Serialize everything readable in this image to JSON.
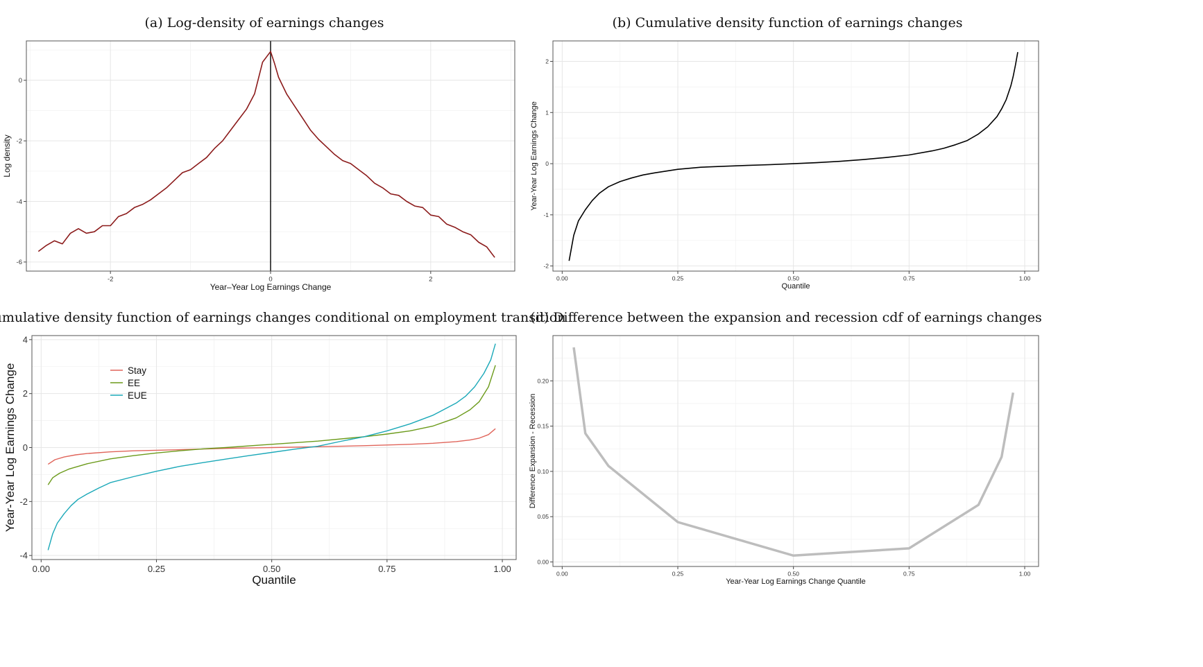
{
  "chart_data": [
    {
      "id": "a",
      "type": "line",
      "title": "(a) Log-density of earnings changes",
      "xlabel": "Year–Year Log Earnings Change",
      "ylabel": "Log density",
      "xlim": [
        -3.05,
        3.05
      ],
      "ylim": [
        -6.3,
        1.3
      ],
      "xticks": [
        -2,
        0,
        2
      ],
      "xticklabels": [
        "-2",
        "0",
        "2"
      ],
      "yticks": [
        0,
        -2,
        -4,
        -6
      ],
      "yticklabels": [
        "0",
        "-2",
        "-4",
        "-6"
      ],
      "grid": true,
      "vline_x": 0,
      "series": [
        {
          "color": "#8b1a1a",
          "x": [
            -2.9,
            -2.8,
            -2.7,
            -2.6,
            -2.5,
            -2.4,
            -2.3,
            -2.2,
            -2.1,
            -2.0,
            -1.9,
            -1.8,
            -1.7,
            -1.6,
            -1.5,
            -1.4,
            -1.3,
            -1.2,
            -1.1,
            -1.0,
            -0.9,
            -0.8,
            -0.7,
            -0.6,
            -0.5,
            -0.4,
            -0.3,
            -0.2,
            -0.1,
            0.0,
            0.05,
            0.1,
            0.2,
            0.3,
            0.4,
            0.5,
            0.6,
            0.7,
            0.8,
            0.9,
            1.0,
            1.1,
            1.2,
            1.3,
            1.4,
            1.5,
            1.6,
            1.7,
            1.8,
            1.9,
            2.0,
            2.1,
            2.2,
            2.3,
            2.4,
            2.5,
            2.6,
            2.7,
            2.8
          ],
          "y": [
            -5.65,
            -5.45,
            -5.3,
            -5.4,
            -5.05,
            -4.9,
            -5.05,
            -5.0,
            -4.8,
            -4.8,
            -4.5,
            -4.4,
            -4.2,
            -4.1,
            -3.95,
            -3.75,
            -3.55,
            -3.3,
            -3.05,
            -2.95,
            -2.75,
            -2.55,
            -2.25,
            -2.0,
            -1.65,
            -1.3,
            -0.95,
            -0.45,
            0.6,
            0.95,
            0.55,
            0.1,
            -0.45,
            -0.85,
            -1.25,
            -1.65,
            -1.95,
            -2.2,
            -2.45,
            -2.65,
            -2.75,
            -2.95,
            -3.15,
            -3.4,
            -3.55,
            -3.75,
            -3.8,
            -4.0,
            -4.15,
            -4.2,
            -4.45,
            -4.5,
            -4.75,
            -4.85,
            -5.0,
            -5.1,
            -5.35,
            -5.5,
            -5.85
          ]
        }
      ]
    },
    {
      "id": "b",
      "type": "line",
      "title": "(b) Cumulative density function of earnings changes",
      "xlabel": "Quantile",
      "ylabel": "Year-Year Log Earnings Change",
      "xlim": [
        -0.02,
        1.03
      ],
      "ylim": [
        -2.1,
        2.4
      ],
      "xticks": [
        0,
        0.25,
        0.5,
        0.75,
        1
      ],
      "xticklabels": [
        "0.00",
        "0.25",
        "0.50",
        "0.75",
        "1.00"
      ],
      "yticks": [
        2,
        1,
        0,
        -1,
        -2
      ],
      "yticklabels": [
        "2",
        "1",
        "0",
        "-1",
        "-2"
      ],
      "grid": true,
      "series": [
        {
          "color": "#000000",
          "x": [
            0.015,
            0.025,
            0.035,
            0.05,
            0.065,
            0.08,
            0.1,
            0.125,
            0.15,
            0.175,
            0.2,
            0.25,
            0.3,
            0.35,
            0.4,
            0.45,
            0.5,
            0.55,
            0.6,
            0.65,
            0.7,
            0.75,
            0.8,
            0.825,
            0.85,
            0.875,
            0.9,
            0.92,
            0.94,
            0.95,
            0.96,
            0.97,
            0.975,
            0.98,
            0.985
          ],
          "y": [
            -1.9,
            -1.4,
            -1.12,
            -0.9,
            -0.72,
            -0.58,
            -0.45,
            -0.35,
            -0.28,
            -0.22,
            -0.18,
            -0.11,
            -0.07,
            -0.05,
            -0.035,
            -0.02,
            0.0,
            0.02,
            0.045,
            0.08,
            0.12,
            0.17,
            0.25,
            0.3,
            0.37,
            0.45,
            0.58,
            0.72,
            0.92,
            1.07,
            1.25,
            1.52,
            1.7,
            1.93,
            2.18
          ]
        }
      ]
    },
    {
      "id": "c",
      "type": "line",
      "title": "(c) Cumulative density function of earnings changes conditional on employment transition",
      "xlabel": "Quantile",
      "ylabel": "Year-Year Log Earnings Change",
      "xlim": [
        -0.02,
        1.03
      ],
      "ylim": [
        -4.15,
        4.15
      ],
      "xticks": [
        0,
        0.25,
        0.5,
        0.75,
        1
      ],
      "xticklabels": [
        "0.00",
        "0.25",
        "0.50",
        "0.75",
        "1.00"
      ],
      "yticks": [
        4,
        2,
        0,
        -2,
        -4
      ],
      "yticklabels": [
        "4",
        "2",
        "0",
        "-2",
        "-4"
      ],
      "grid": true,
      "legend_position": "top-left",
      "series": [
        {
          "name": "Stay",
          "color": "#e0645a",
          "x": [
            0.015,
            0.03,
            0.05,
            0.075,
            0.1,
            0.15,
            0.2,
            0.25,
            0.3,
            0.4,
            0.5,
            0.6,
            0.7,
            0.8,
            0.85,
            0.9,
            0.93,
            0.95,
            0.97,
            0.985
          ],
          "y": [
            -0.62,
            -0.45,
            -0.35,
            -0.27,
            -0.22,
            -0.16,
            -0.12,
            -0.1,
            -0.08,
            -0.03,
            0.0,
            0.03,
            0.07,
            0.12,
            0.16,
            0.22,
            0.28,
            0.35,
            0.48,
            0.7
          ]
        },
        {
          "name": "EE",
          "color": "#6b9a1a",
          "x": [
            0.015,
            0.025,
            0.04,
            0.06,
            0.08,
            0.1,
            0.15,
            0.2,
            0.25,
            0.3,
            0.35,
            0.4,
            0.5,
            0.6,
            0.7,
            0.75,
            0.8,
            0.85,
            0.9,
            0.93,
            0.95,
            0.97,
            0.985
          ],
          "y": [
            -1.38,
            -1.12,
            -0.95,
            -0.8,
            -0.7,
            -0.6,
            -0.42,
            -0.3,
            -0.2,
            -0.12,
            -0.05,
            0.0,
            0.12,
            0.24,
            0.4,
            0.5,
            0.62,
            0.8,
            1.1,
            1.4,
            1.7,
            2.25,
            3.05
          ]
        },
        {
          "name": "EUE",
          "color": "#1aa8b8",
          "x": [
            0.015,
            0.025,
            0.035,
            0.05,
            0.065,
            0.08,
            0.1,
            0.125,
            0.15,
            0.2,
            0.25,
            0.3,
            0.35,
            0.4,
            0.45,
            0.5,
            0.55,
            0.6,
            0.65,
            0.7,
            0.75,
            0.8,
            0.85,
            0.9,
            0.92,
            0.94,
            0.96,
            0.975,
            0.985
          ],
          "y": [
            -3.8,
            -3.2,
            -2.8,
            -2.45,
            -2.15,
            -1.92,
            -1.72,
            -1.5,
            -1.3,
            -1.08,
            -0.88,
            -0.7,
            -0.56,
            -0.43,
            -0.3,
            -0.18,
            -0.06,
            0.05,
            0.23,
            0.4,
            0.62,
            0.88,
            1.2,
            1.65,
            1.9,
            2.25,
            2.75,
            3.25,
            3.85
          ]
        }
      ]
    },
    {
      "id": "d",
      "type": "line",
      "title": "(d) Difference between the expansion and recession cdf of earnings changes",
      "xlabel": "Year-Year Log Earnings Change Quantile",
      "ylabel": "Difference Expansion - Recession",
      "xlim": [
        -0.02,
        1.03
      ],
      "ylim": [
        -0.005,
        0.25
      ],
      "xticks": [
        0,
        0.25,
        0.5,
        0.75,
        1
      ],
      "xticklabels": [
        "0.00",
        "0.25",
        "0.50",
        "0.75",
        "1.00"
      ],
      "yticks": [
        0.2,
        0.15,
        0.1,
        0.05,
        0.0
      ],
      "yticklabels": [
        "0.20",
        "0.15",
        "0.10",
        "0.05",
        "0.00"
      ],
      "grid": true,
      "series": [
        {
          "color": "#bdbdbd",
          "x": [
            0.025,
            0.05,
            0.1,
            0.25,
            0.5,
            0.75,
            0.9,
            0.95,
            0.975
          ],
          "y": [
            0.237,
            0.142,
            0.106,
            0.044,
            0.007,
            0.015,
            0.063,
            0.116,
            0.187
          ]
        }
      ]
    }
  ]
}
